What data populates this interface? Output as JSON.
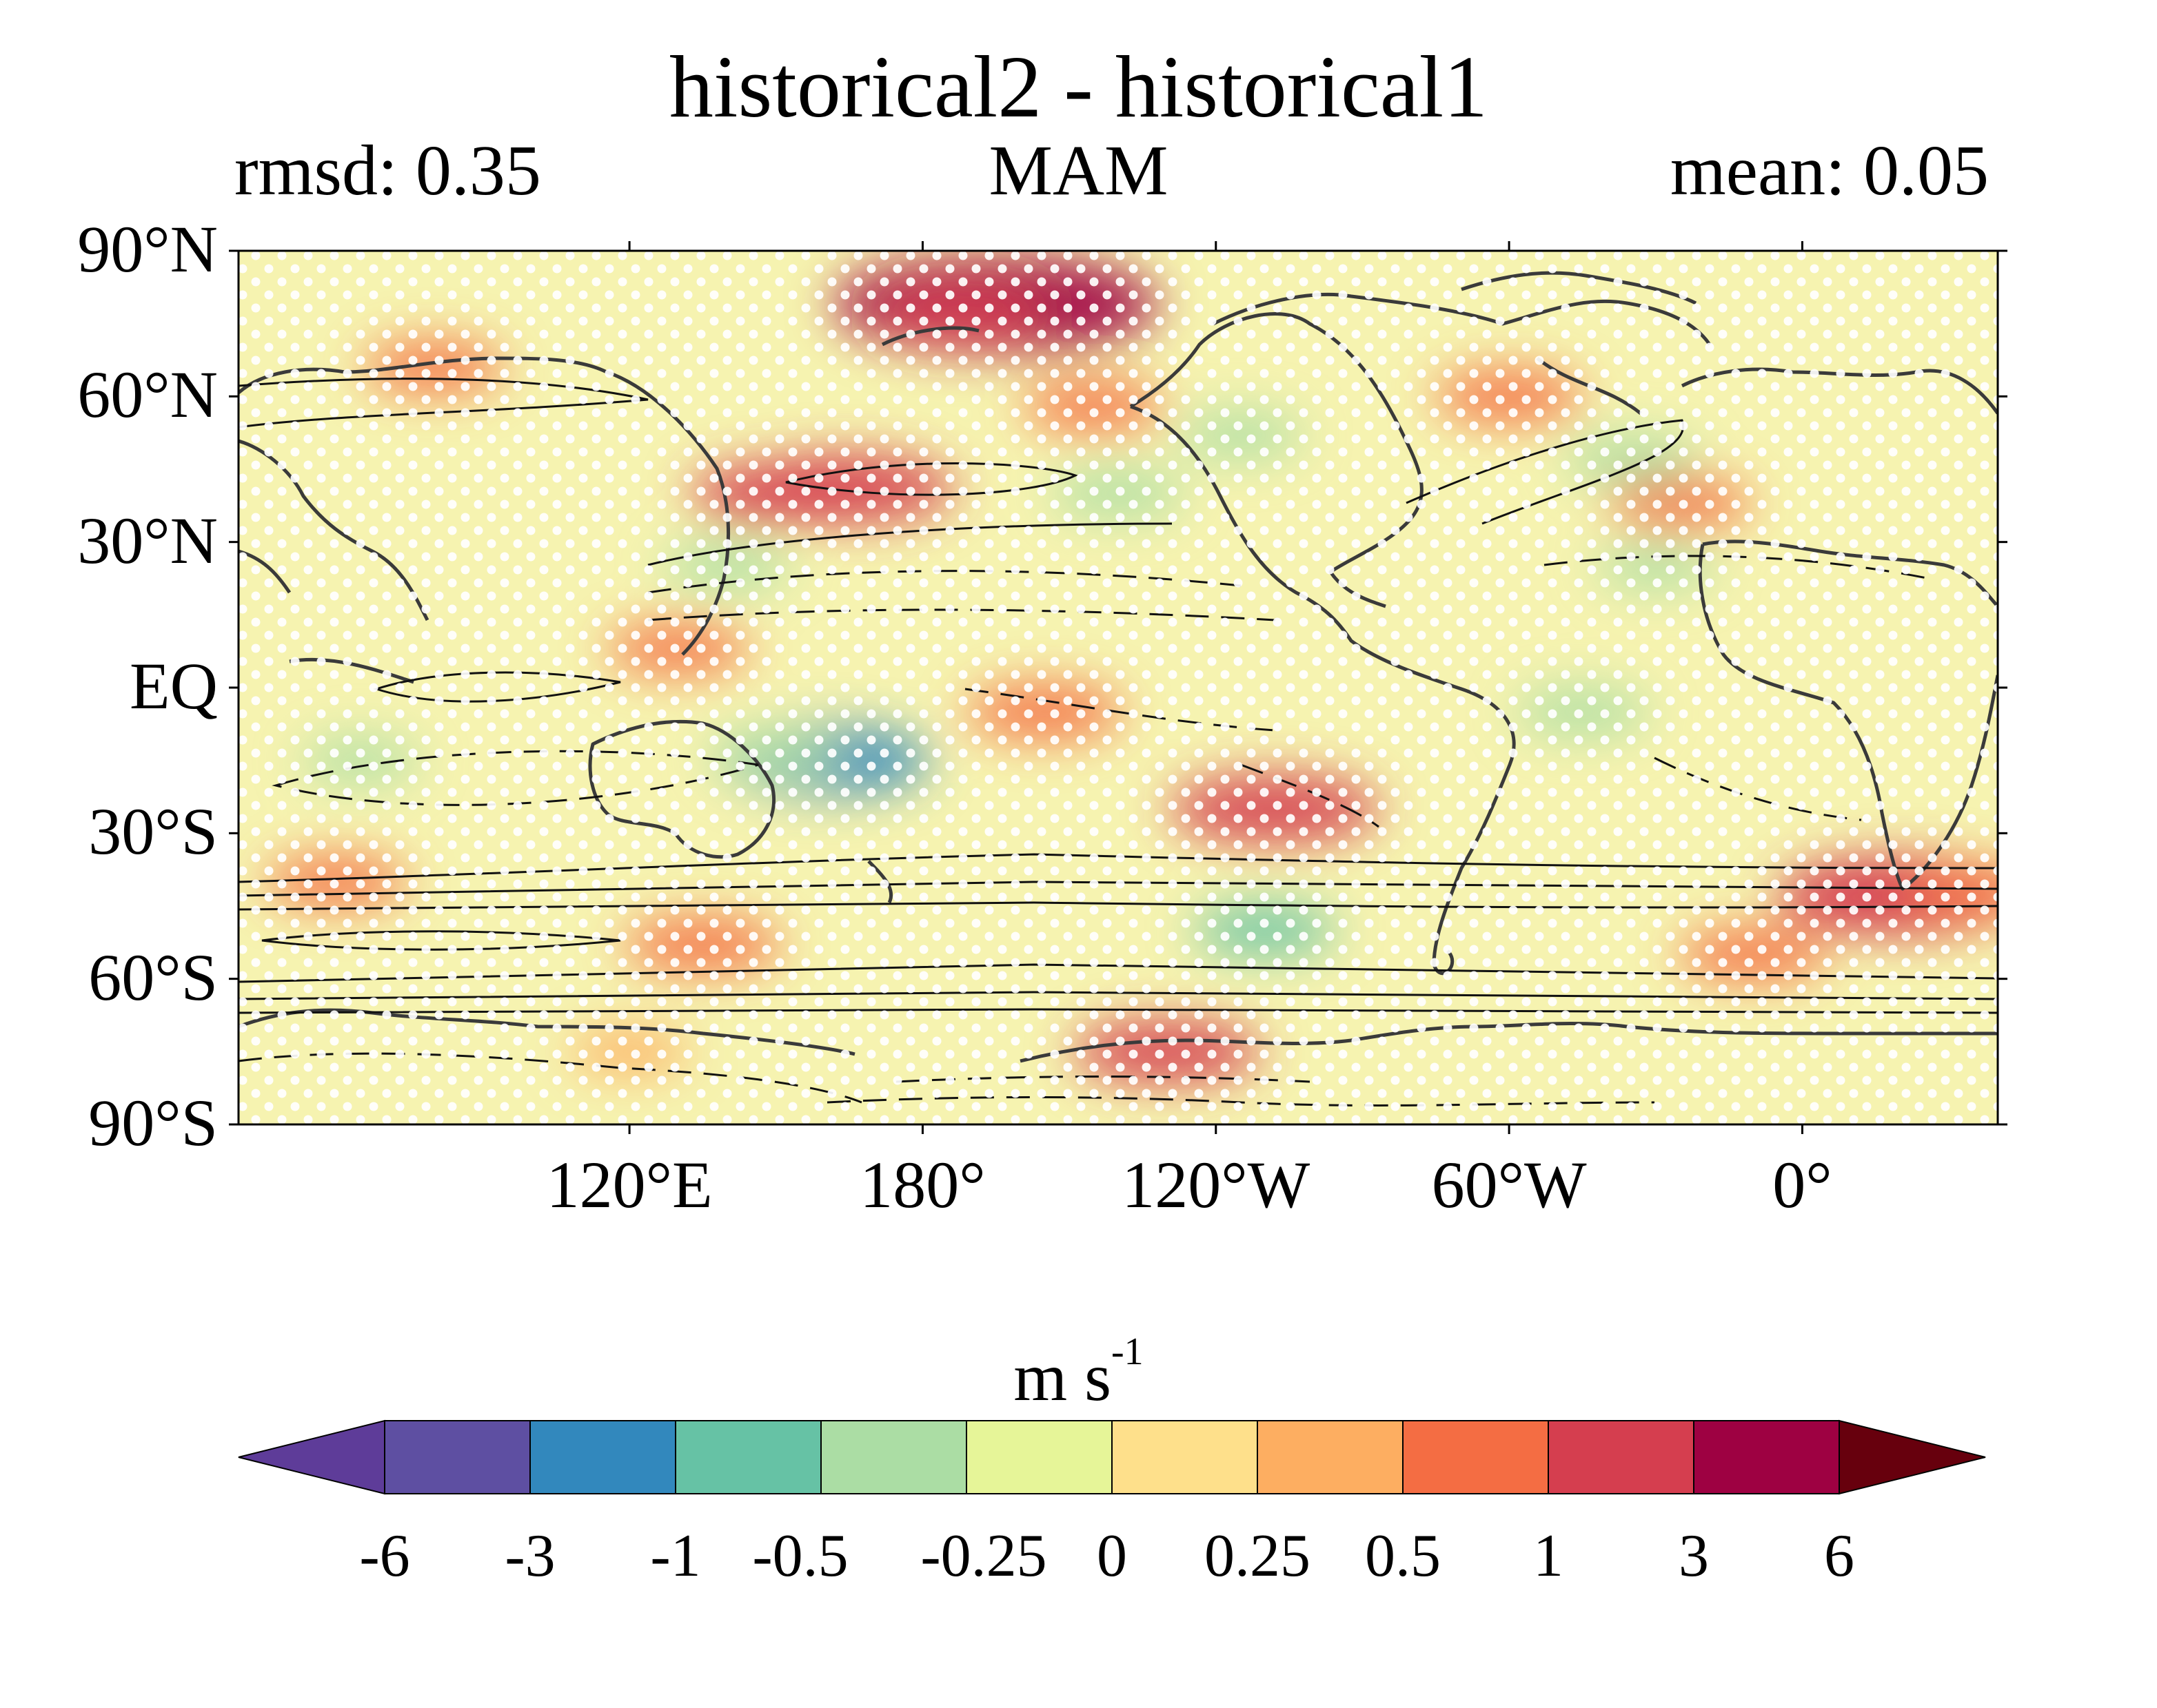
{
  "map": {
    "title": "historical2 - historical1",
    "left_stat": "rmsd: 0.35",
    "season": "MAM",
    "right_stat": "mean: 0.05",
    "lat_ticks": [
      {
        "value": 90,
        "label": "90°N"
      },
      {
        "value": 60,
        "label": "60°N"
      },
      {
        "value": 30,
        "label": "30°N"
      },
      {
        "value": 0,
        "label": "EQ"
      },
      {
        "value": -30,
        "label": "30°S"
      },
      {
        "value": -60,
        "label": "60°S"
      },
      {
        "value": -90,
        "label": "90°S"
      }
    ],
    "lon_ticks": [
      {
        "value": 120,
        "label": "120°E"
      },
      {
        "value": 180,
        "label": "180°"
      },
      {
        "value": 240,
        "label": "120°W"
      },
      {
        "value": 300,
        "label": "60°W"
      },
      {
        "value": 360,
        "label": "0°"
      }
    ],
    "lon_range": [
      40,
      400
    ],
    "lat_range": [
      -90,
      90
    ],
    "stippling": "white dots mark significant grid points",
    "anomalies": [
      {
        "lon": 195,
        "lat": 79,
        "value": 3
      },
      {
        "lon": 188,
        "lat": 77,
        "value": 1
      },
      {
        "lon": 165,
        "lat": 41,
        "value": 1.5
      },
      {
        "lon": 150,
        "lat": 40,
        "value": 1
      },
      {
        "lon": 80,
        "lat": 66,
        "value": 0.6
      },
      {
        "lon": 335,
        "lat": 38,
        "value": 0.6
      },
      {
        "lon": 300,
        "lat": 60,
        "value": 0.7
      },
      {
        "lon": 215,
        "lat": 58,
        "value": 0.6
      },
      {
        "lon": 325,
        "lat": 47,
        "value": -0.5
      },
      {
        "lon": 220,
        "lat": 40,
        "value": -0.5
      },
      {
        "lon": 245,
        "lat": 52,
        "value": -0.4
      },
      {
        "lon": 140,
        "lat": 25,
        "value": -0.4
      },
      {
        "lon": 330,
        "lat": 25,
        "value": -0.3
      },
      {
        "lon": 160,
        "lat": -15,
        "value": -1.5
      },
      {
        "lon": 150,
        "lat": -14,
        "value": -0.5
      },
      {
        "lon": 65,
        "lat": -15,
        "value": -0.3
      },
      {
        "lon": 315,
        "lat": -5,
        "value": -0.5
      },
      {
        "lon": 250,
        "lat": -50,
        "value": -0.6
      },
      {
        "lon": 205,
        "lat": -5,
        "value": 0.8
      },
      {
        "lon": 252,
        "lat": -25,
        "value": 1.5
      },
      {
        "lon": 130,
        "lat": 8,
        "value": 0.6
      },
      {
        "lon": 135,
        "lat": -53,
        "value": 0.8
      },
      {
        "lon": 60,
        "lat": -40,
        "value": 0.6
      },
      {
        "lon": 375,
        "lat": -42,
        "value": 1
      },
      {
        "lon": 380,
        "lat": -43,
        "value": 2
      },
      {
        "lon": 350,
        "lat": -55,
        "value": 0.7
      },
      {
        "lon": 230,
        "lat": -75,
        "value": 1.2
      },
      {
        "lon": 120,
        "lat": -75,
        "value": 0.3
      },
      {
        "lon": 395,
        "lat": -42,
        "value": 0.6
      }
    ],
    "colorbar": {
      "units": "m s",
      "units_exponent": "-1",
      "boundaries": [
        "-6",
        "-3",
        "-1",
        "-0.5",
        "-0.25",
        "0",
        "0.25",
        "0.5",
        "1",
        "3",
        "6"
      ],
      "colors": [
        "#5e3c99",
        "#5e4fa2",
        "#3288bd",
        "#66c2a5",
        "#abdda4",
        "#e6f598",
        "#fee08b",
        "#fdae61",
        "#f46d43",
        "#d53e4f",
        "#9e0142",
        "#67000d"
      ]
    }
  }
}
